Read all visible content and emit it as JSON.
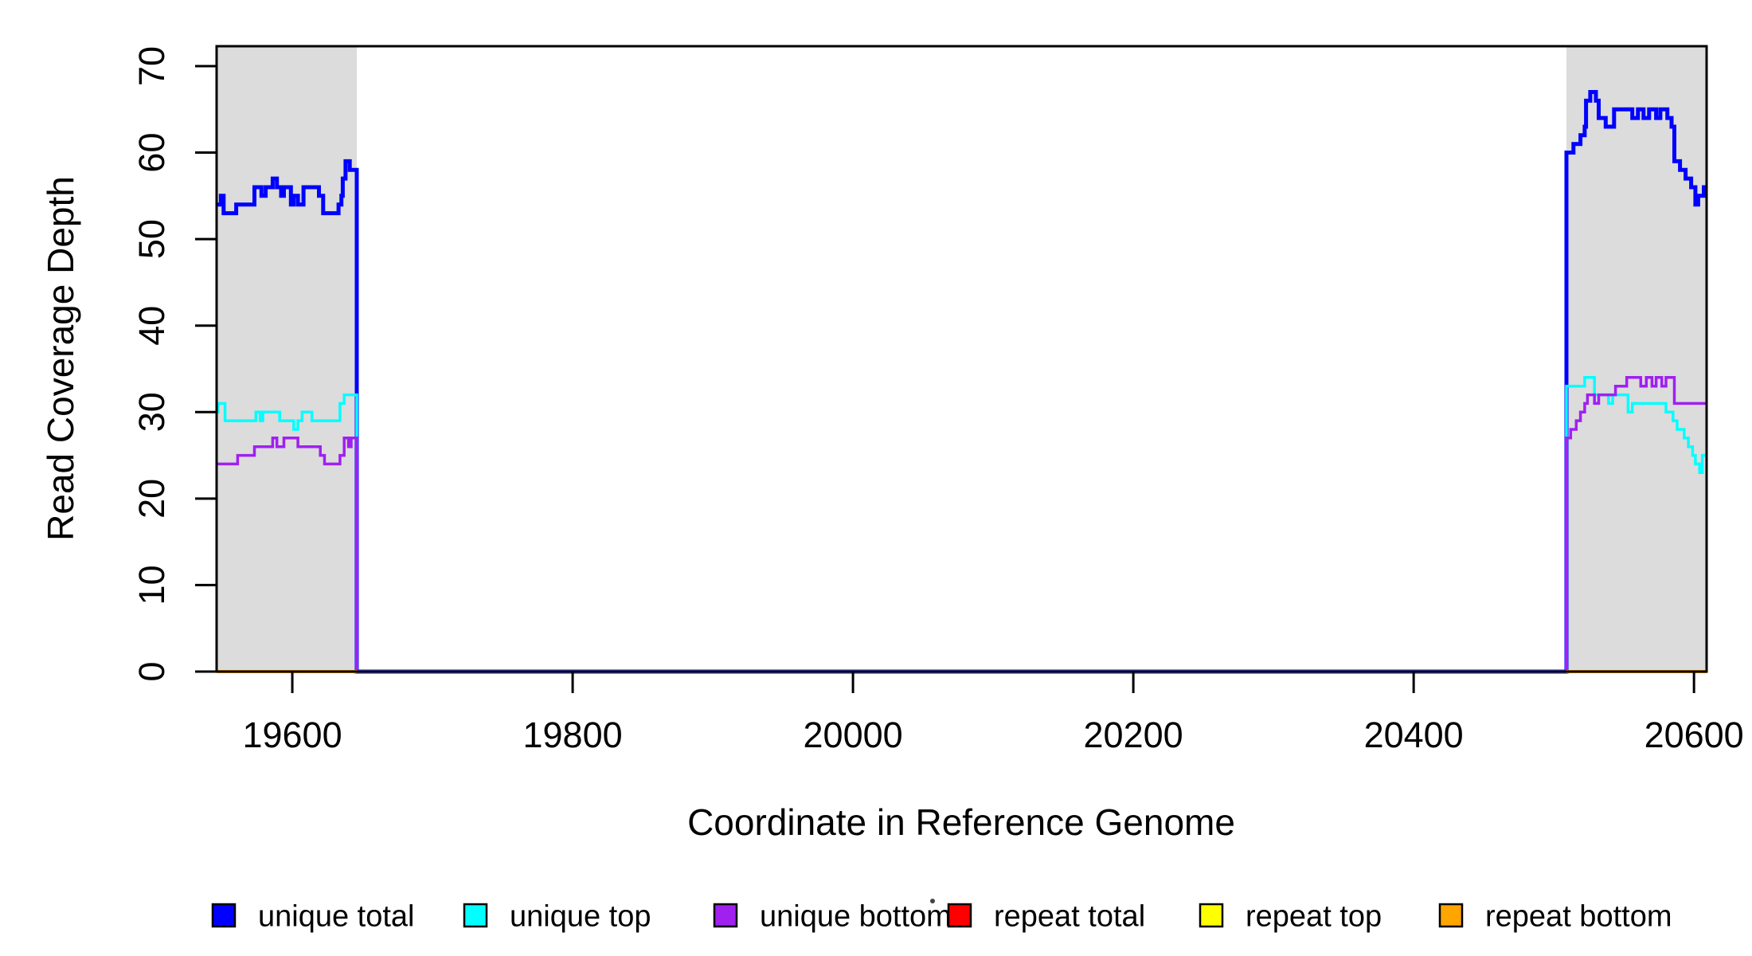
{
  "figure": {
    "background": "#ffffff",
    "band_color": "#DCDCDC",
    "axis_color": "#000000"
  },
  "legend": {
    "items": [
      {
        "label": "unique total",
        "color": "#0000FF"
      },
      {
        "label": "unique top",
        "color": "#00FFFF"
      },
      {
        "label": "unique bottom",
        "color": "#A020F0"
      },
      {
        "label": "repeat total",
        "color": "#FF0000"
      },
      {
        "label": "repeat top",
        "color": "#FFFF00"
      },
      {
        "label": "repeat bottom",
        "color": "#FFA500"
      }
    ]
  },
  "chart_data": {
    "type": "line",
    "title": "",
    "xlabel": "Coordinate in Reference Genome",
    "ylabel": "Read Coverage Depth",
    "xlim": [
      19546,
      20609
    ],
    "ylim": [
      0,
      72.3
    ],
    "x_ticks": [
      19600,
      19800,
      20000,
      20200,
      20400,
      20600
    ],
    "y_ticks": [
      0,
      10,
      20,
      30,
      40,
      50,
      60,
      70
    ],
    "grid": false,
    "legend_position": "bottom",
    "highlight_bands": [
      {
        "x1": 19546,
        "x2": 19646
      },
      {
        "x1": 20509,
        "x2": 20609
      }
    ],
    "series": [
      {
        "name": "unique total",
        "color": "#0000FF",
        "width": 5,
        "segments": [
          [
            [
              19546,
              54
            ],
            [
              19549,
              55
            ],
            [
              19551,
              53
            ],
            [
              19560,
              54
            ],
            [
              19573,
              56
            ],
            [
              19578,
              55
            ],
            [
              19581,
              56
            ],
            [
              19586,
              57
            ],
            [
              19589,
              56
            ],
            [
              19592,
              55
            ],
            [
              19594,
              56
            ],
            [
              19599,
              54
            ],
            [
              19601,
              55
            ],
            [
              19604,
              54
            ],
            [
              19608,
              56
            ],
            [
              19619,
              55
            ],
            [
              19622,
              53
            ],
            [
              19633,
              54
            ],
            [
              19635,
              55
            ],
            [
              19636,
              57
            ],
            [
              19638,
              59
            ],
            [
              19641,
              58
            ],
            [
              19646,
              0
            ],
            [
              20509,
              60
            ],
            [
              20514,
              61
            ],
            [
              20519,
              62
            ],
            [
              20522,
              63
            ],
            [
              20523,
              66
            ],
            [
              20526,
              67
            ],
            [
              20530,
              66
            ],
            [
              20532,
              64
            ],
            [
              20537,
              63
            ],
            [
              20543,
              65
            ],
            [
              20556,
              64
            ],
            [
              20560,
              65
            ],
            [
              20564,
              64
            ],
            [
              20568,
              65
            ],
            [
              20573,
              64
            ],
            [
              20576,
              65
            ],
            [
              20581,
              64
            ],
            [
              20584,
              63
            ],
            [
              20586,
              59
            ],
            [
              20590,
              58
            ],
            [
              20594,
              57
            ],
            [
              20598,
              56
            ],
            [
              20601,
              54
            ],
            [
              20603,
              55
            ],
            [
              20607,
              56
            ],
            [
              20609,
              56
            ]
          ]
        ]
      },
      {
        "name": "unique top",
        "color": "#00FFFF",
        "width": 3.5,
        "segments": [
          [
            [
              19546,
              30
            ],
            [
              19547,
              31
            ],
            [
              19552,
              29
            ],
            [
              19574,
              30
            ],
            [
              19577,
              29
            ],
            [
              19579,
              30
            ],
            [
              19591,
              29
            ],
            [
              19601,
              28
            ],
            [
              19604,
              29
            ],
            [
              19607,
              30
            ],
            [
              19614,
              29
            ],
            [
              19634,
              31
            ],
            [
              19637,
              32
            ],
            [
              19646,
              0
            ],
            [
              20509,
              33
            ],
            [
              20522,
              34
            ],
            [
              20529,
              32
            ],
            [
              20539,
              31
            ],
            [
              20542,
              32
            ],
            [
              20553,
              30
            ],
            [
              20556,
              31
            ],
            [
              20580,
              30
            ],
            [
              20585,
              29
            ],
            [
              20588,
              28
            ],
            [
              20593,
              27
            ],
            [
              20596,
              26
            ],
            [
              20599,
              25
            ],
            [
              20601,
              24
            ],
            [
              20604,
              23
            ],
            [
              20606,
              25
            ],
            [
              20609,
              25
            ]
          ]
        ]
      },
      {
        "name": "unique bottom",
        "color": "#A020F0",
        "width": 3.5,
        "segments": [
          [
            [
              19546,
              24
            ],
            [
              19561,
              25
            ],
            [
              19573,
              26
            ],
            [
              19586,
              27
            ],
            [
              19589,
              26
            ],
            [
              19594,
              27
            ],
            [
              19604,
              26
            ],
            [
              19620,
              25
            ],
            [
              19623,
              24
            ],
            [
              19634,
              25
            ],
            [
              19637,
              27
            ],
            [
              19640,
              26
            ],
            [
              19642,
              27
            ],
            [
              19646,
              0
            ],
            [
              20509,
              27
            ],
            [
              20512,
              28
            ],
            [
              20516,
              29
            ],
            [
              20519,
              30
            ],
            [
              20522,
              31
            ],
            [
              20524,
              32
            ],
            [
              20529,
              31
            ],
            [
              20532,
              32
            ],
            [
              20544,
              33
            ],
            [
              20552,
              34
            ],
            [
              20562,
              33
            ],
            [
              20566,
              34
            ],
            [
              20570,
              33
            ],
            [
              20573,
              34
            ],
            [
              20577,
              33
            ],
            [
              20580,
              34
            ],
            [
              20586,
              31
            ],
            [
              20609,
              31
            ]
          ]
        ]
      },
      {
        "name": "repeat total",
        "color": "#FF0000",
        "width": 3.5,
        "segments": [
          [
            [
              19546,
              0
            ],
            [
              19646,
              0
            ]
          ],
          [
            [
              20509,
              0
            ],
            [
              20609,
              0
            ]
          ]
        ]
      },
      {
        "name": "repeat top",
        "color": "#FFFF00",
        "width": 3.5,
        "segments": [
          [
            [
              19546,
              0
            ],
            [
              19646,
              0
            ]
          ],
          [
            [
              20509,
              0
            ],
            [
              20609,
              0
            ]
          ]
        ]
      },
      {
        "name": "repeat bottom",
        "color": "#FFA500",
        "width": 4,
        "segments": [
          [
            [
              19546,
              0
            ],
            [
              19646,
              0
            ]
          ],
          [
            [
              20509,
              0
            ],
            [
              20609,
              0
            ]
          ]
        ]
      }
    ]
  }
}
